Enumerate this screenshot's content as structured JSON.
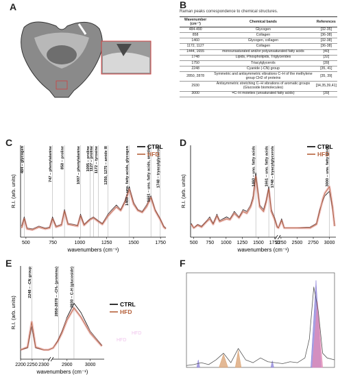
{
  "panels": [
    "A",
    "B",
    "C",
    "D",
    "E",
    "F"
  ],
  "table": {
    "title": "Raman peaks correspondence to chemical structures.",
    "header": [
      "Wavenumber (cm⁻¹)",
      "Chemical bands",
      "References"
    ],
    "rows": [
      [
        "484-490",
        "Glycogen",
        "[32-35]"
      ],
      [
        "858",
        "Collagen",
        "[36-38]"
      ],
      [
        "1460",
        "Glycogen, collagen",
        "[32-38]"
      ],
      [
        "1172, 1127",
        "Collagen",
        "[36-38]"
      ],
      [
        "1444, 1655",
        "monounsaturated and/or polyunsaturated fatty acids",
        "[40]"
      ],
      [
        "1748",
        "Lipids, Phospholipids, Triglycerides",
        "[32]"
      ],
      [
        "1750",
        "Triacylglycerols",
        "[39]"
      ],
      [
        "2248",
        "Cyanide (-CN) group",
        "[35, 41]"
      ],
      [
        "2850, 2878",
        "Symmetric and antisymmetric vibrations C–H of the methylene group CH2 of proteins",
        "[35, 39]"
      ],
      [
        "2930",
        "Antisymmetric stretching C–H vibrations of aromatic groups (Glucoside biomolecules)",
        "[34,35,39,41]"
      ],
      [
        "3000",
        "=C–H moieties (unsaturated fatty acids)",
        "[39]"
      ]
    ]
  },
  "chart_data": [
    {
      "type": "line",
      "x_label": "wavenumbers (cm⁻¹)",
      "y_label": "R.I. (arb. units)",
      "frame": "axes",
      "legend": "upper right",
      "xlim": [
        450,
        1800
      ],
      "ylim": [
        0,
        1
      ],
      "xticks": [
        500,
        750,
        1000,
        1250,
        1500,
        1750
      ],
      "x": [
        460,
        484,
        510,
        560,
        620,
        680,
        720,
        747,
        780,
        830,
        858,
        890,
        940,
        980,
        1007,
        1040,
        1095,
        1127,
        1172,
        1210,
        1262,
        1300,
        1340,
        1380,
        1420,
        1460,
        1500,
        1540,
        1580,
        1620,
        1661,
        1700,
        1748,
        1780,
        1800
      ],
      "series": [
        {
          "name": "CTRL",
          "color": "#000000",
          "values": [
            0.12,
            0.22,
            0.1,
            0.09,
            0.12,
            0.1,
            0.11,
            0.22,
            0.12,
            0.14,
            0.3,
            0.15,
            0.14,
            0.13,
            0.25,
            0.14,
            0.2,
            0.22,
            0.18,
            0.15,
            0.25,
            0.3,
            0.35,
            0.3,
            0.4,
            0.55,
            0.38,
            0.3,
            0.28,
            0.35,
            0.45,
            0.3,
            0.2,
            0.12,
            0.1
          ]
        },
        {
          "name": "HFD",
          "color": "#b5603a",
          "band": true,
          "values": [
            0.1,
            0.2,
            0.09,
            0.08,
            0.11,
            0.09,
            0.1,
            0.2,
            0.11,
            0.13,
            0.28,
            0.14,
            0.13,
            0.12,
            0.23,
            0.13,
            0.19,
            0.21,
            0.17,
            0.14,
            0.23,
            0.28,
            0.33,
            0.29,
            0.38,
            0.52,
            0.36,
            0.29,
            0.27,
            0.33,
            0.43,
            0.29,
            0.19,
            0.11,
            0.09
          ]
        }
      ],
      "annotations": [
        {
          "x": 484,
          "text": "484 – glycogen"
        },
        {
          "x": 747,
          "text": "747 – phenylalanine"
        },
        {
          "x": 858,
          "text": "858 – proline"
        },
        {
          "x": 1007,
          "text": "1007 – phenylalanine"
        },
        {
          "x": 1095,
          "text": "1095 – proline"
        },
        {
          "x": 1127,
          "text": "1127 – proline"
        },
        {
          "x": 1172,
          "text": "1172 – tyrosine"
        },
        {
          "x": 1262,
          "text": "1250, 1275 – amide III"
        },
        {
          "x": 1460,
          "text": "1460 – uns. fatty acids, glycogen"
        },
        {
          "x": 1661,
          "text": "1661 – uns. fatty acids, amide I"
        },
        {
          "x": 1748,
          "text": "1748 – tryacylglycerols"
        }
      ]
    },
    {
      "type": "line",
      "x_label": "wavenumbers (cm⁻¹)",
      "y_label": "R.I. (arb. units)",
      "frame": "axes",
      "legend": "upper right",
      "xlim": [
        450,
        3100
      ],
      "xbreak": [
        1800,
        2200
      ],
      "ylim": [
        0,
        1
      ],
      "xticks": [
        500,
        750,
        1000,
        1250,
        1500,
        1750,
        2250,
        2500,
        2750,
        3000
      ],
      "x": [
        460,
        500,
        560,
        620,
        700,
        747,
        800,
        858,
        900,
        1007,
        1060,
        1127,
        1200,
        1262,
        1320,
        1380,
        1420,
        1460,
        1520,
        1580,
        1620,
        1661,
        1700,
        1748,
        1790,
        2210,
        2260,
        2300,
        2500,
        2700,
        2800,
        2850,
        2900,
        2930,
        3000,
        3050,
        3080
      ],
      "series": [
        {
          "name": "CTRL",
          "color": "#000000",
          "values": [
            0.15,
            0.1,
            0.14,
            0.12,
            0.18,
            0.22,
            0.15,
            0.25,
            0.18,
            0.22,
            0.2,
            0.28,
            0.22,
            0.3,
            0.28,
            0.35,
            0.45,
            0.7,
            0.35,
            0.3,
            0.4,
            0.55,
            0.3,
            0.22,
            0.12,
            0.1,
            0.2,
            0.1,
            0.1,
            0.11,
            0.15,
            0.3,
            0.4,
            0.45,
            0.5,
            0.3,
            0.12
          ]
        },
        {
          "name": "HFD",
          "color": "#b5603a",
          "band": true,
          "values": [
            0.14,
            0.1,
            0.13,
            0.11,
            0.17,
            0.2,
            0.14,
            0.23,
            0.17,
            0.2,
            0.19,
            0.26,
            0.21,
            0.28,
            0.26,
            0.33,
            0.42,
            0.66,
            0.33,
            0.28,
            0.38,
            0.52,
            0.28,
            0.2,
            0.11,
            0.1,
            0.18,
            0.1,
            0.1,
            0.1,
            0.14,
            0.28,
            0.42,
            0.48,
            0.55,
            0.32,
            0.12
          ]
        }
      ],
      "annotations": [
        {
          "x": 1460,
          "text": "1460 – uns. fatty acids"
        },
        {
          "x": 1661,
          "text": "1661 – uns. fatty acids"
        },
        {
          "x": 1748,
          "text": "1748 – tryacylglycerols"
        },
        {
          "x": 3000,
          "text": "3000 – uns. fatty acids"
        }
      ]
    },
    {
      "type": "line",
      "x_label": "wavenumbers (cm⁻¹)",
      "y_label": "R.I. (arb. units)",
      "frame": "axes",
      "legend": "right",
      "ghost_labels": [
        "HFD",
        "HFD"
      ],
      "xlim": [
        2200,
        3060
      ],
      "xbreak": [
        2330,
        2830
      ],
      "ylim": [
        0,
        1
      ],
      "xticks": [
        2200,
        2250,
        2300,
        2900,
        3000
      ],
      "x": [
        2200,
        2230,
        2248,
        2265,
        2300,
        2320,
        2840,
        2860,
        2878,
        2900,
        2930,
        2960,
        3000,
        3050
      ],
      "series": [
        {
          "name": "CTRL",
          "color": "#000000",
          "values": [
            0.1,
            0.12,
            0.35,
            0.12,
            0.1,
            0.1,
            0.12,
            0.2,
            0.3,
            0.45,
            0.6,
            0.5,
            0.3,
            0.15
          ]
        },
        {
          "name": "HFD",
          "color": "#b5603a",
          "band": true,
          "values": [
            0.1,
            0.13,
            0.4,
            0.13,
            0.1,
            0.1,
            0.12,
            0.19,
            0.28,
            0.42,
            0.55,
            0.45,
            0.28,
            0.14
          ]
        }
      ],
      "annotations": [
        {
          "x": 2248,
          "text": "2248 – -CN group"
        },
        {
          "x": 2864,
          "text": "2850-2878 – -CH₂ (proteins)"
        },
        {
          "x": 2930,
          "text": "2930 – C-H (glucoside)"
        }
      ]
    },
    {
      "type": "line",
      "frame": "box",
      "xlim": [
        0,
        100
      ],
      "ylim": [
        0,
        1
      ],
      "x": [
        0,
        5,
        10,
        15,
        20,
        25,
        30,
        35,
        40,
        45,
        50,
        55,
        60,
        65,
        70,
        75,
        80,
        83,
        86,
        89,
        92,
        95,
        100
      ],
      "series": [
        {
          "color": "#555555",
          "values": [
            0.02,
            0.03,
            0.05,
            0.03,
            0.08,
            0.15,
            0.05,
            0.2,
            0.08,
            0.05,
            0.1,
            0.06,
            0.05,
            0.04,
            0.06,
            0.05,
            0.1,
            0.3,
            0.85,
            0.6,
            0.15,
            0.1,
            0.08
          ]
        }
      ],
      "areas": [
        {
          "color": "#8a7fd8",
          "x": [
            84,
            87.5,
            91
          ],
          "values": [
            0,
            0.92,
            0
          ]
        },
        {
          "color": "#e28ab4",
          "x": [
            85,
            88.5,
            92
          ],
          "values": [
            0,
            0.7,
            0
          ]
        },
        {
          "color": "#8a7fd8",
          "x": [
            7,
            8,
            9
          ],
          "values": [
            0,
            0.08,
            0
          ]
        },
        {
          "color": "#d9a070",
          "x": [
            22,
            25,
            28
          ],
          "values": [
            0,
            0.14,
            0
          ]
        },
        {
          "color": "#d9a070",
          "x": [
            33,
            35,
            37
          ],
          "values": [
            0,
            0.18,
            0
          ]
        },
        {
          "color": "#8a7fd8",
          "x": [
            57,
            58,
            59
          ],
          "values": [
            0,
            0.07,
            0
          ]
        }
      ]
    }
  ]
}
